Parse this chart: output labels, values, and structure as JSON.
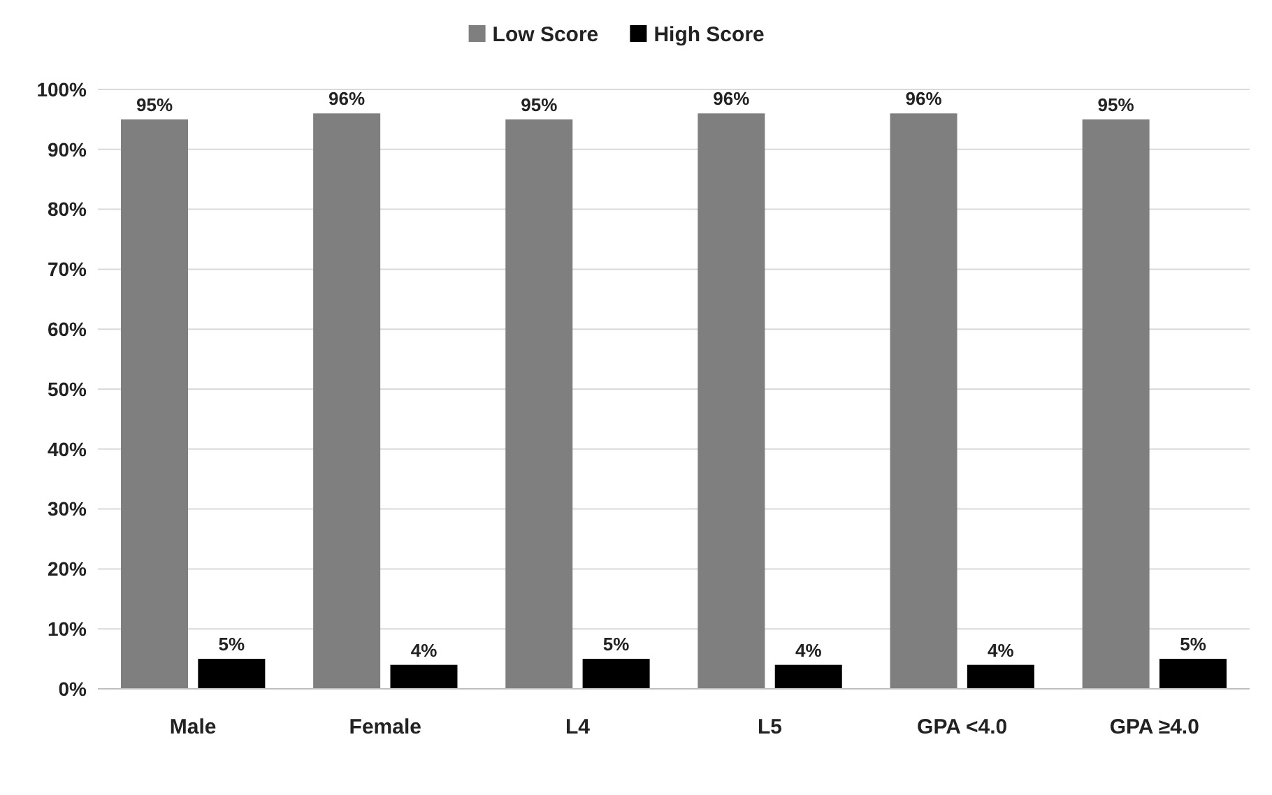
{
  "chart_data": {
    "type": "bar",
    "categories": [
      "Male",
      "Female",
      "L4",
      "L5",
      "GPA <4.0",
      "GPA ≥4.0"
    ],
    "series": [
      {
        "name": "Low Score",
        "color": "#7f7f7f",
        "values": [
          95,
          96,
          95,
          96,
          96,
          95
        ],
        "value_labels": [
          "95%",
          "96%",
          "95%",
          "96%",
          "96%",
          "95%"
        ]
      },
      {
        "name": "High Score",
        "color": "#000000",
        "values": [
          5,
          4,
          5,
          4,
          4,
          5
        ],
        "value_labels": [
          "5%",
          "4%",
          "5%",
          "4%",
          "4%",
          "5%"
        ]
      }
    ],
    "ylim": [
      0,
      100
    ],
    "yticks": [
      {
        "value": 0,
        "label": "0%"
      },
      {
        "value": 10,
        "label": "10%"
      },
      {
        "value": 20,
        "label": "20%"
      },
      {
        "value": 30,
        "label": "30%"
      },
      {
        "value": 40,
        "label": "40%"
      },
      {
        "value": 50,
        "label": "50%"
      },
      {
        "value": 60,
        "label": "60%"
      },
      {
        "value": 70,
        "label": "70%"
      },
      {
        "value": 80,
        "label": "80%"
      },
      {
        "value": 90,
        "label": "90%"
      },
      {
        "value": 100,
        "label": "100%"
      }
    ],
    "grid": "y",
    "legend": "top"
  }
}
